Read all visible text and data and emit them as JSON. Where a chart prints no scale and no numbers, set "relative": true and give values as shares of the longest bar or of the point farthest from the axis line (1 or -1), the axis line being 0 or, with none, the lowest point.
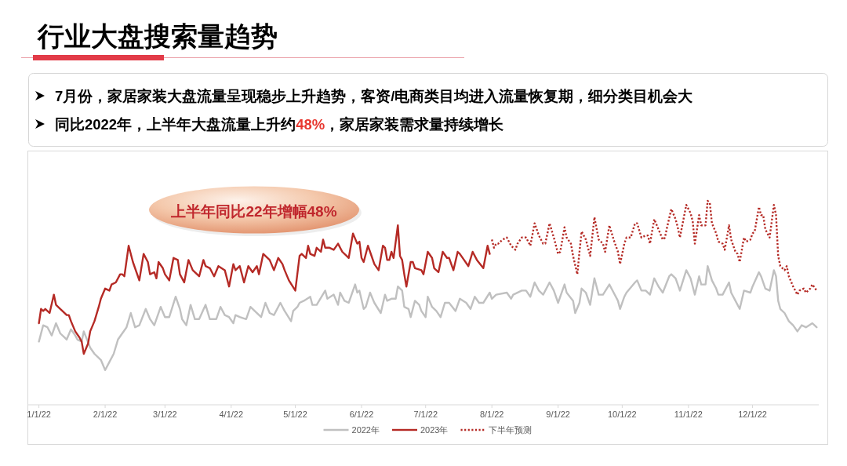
{
  "chart_data": {
    "type": "line",
    "title": "行业大盘搜索量趋势",
    "annotations": [
      "7月份，家居家装大盘流量呈现稳步上升趋势，客资/电商类目均进入流量恢复期，细分类目机会大",
      "同比2022年，上半年大盘流量上升约",
      "48%",
      "，家居家装需求量持续增长",
      "上半年同比22年增幅48%"
    ],
    "relative": true,
    "tick_labels": "x",
    "legend": "bottom",
    "xlim": [
      "2021-12-27",
      "2023-01-01"
    ],
    "xticks": [
      {
        "value": "2022-01-01",
        "label": "1/1/22"
      },
      {
        "value": "2022-02-01",
        "label": "2/1/22"
      },
      {
        "value": "2022-03-01",
        "label": "3/1/22"
      },
      {
        "value": "2022-04-01",
        "label": "4/1/22"
      },
      {
        "value": "2022-05-01",
        "label": "5/1/22"
      },
      {
        "value": "2022-06-01",
        "label": "6/1/22"
      },
      {
        "value": "2022-07-01",
        "label": "7/1/22"
      },
      {
        "value": "2022-08-01",
        "label": "8/1/22"
      },
      {
        "value": "2022-09-01",
        "label": "9/1/22"
      },
      {
        "value": "2022-10-01",
        "label": "10/1/22"
      },
      {
        "value": "2022-11-01",
        "label": "11/1/22"
      },
      {
        "value": "2022-12-01",
        "label": "12/1/22"
      }
    ],
    "series": [
      {
        "name": "2022年",
        "color": "#c0c0c0",
        "x": [
          "2022-01-01",
          "2022-01-03",
          "2022-01-05",
          "2022-01-07",
          "2022-01-09",
          "2022-01-11",
          "2022-01-13",
          "2022-01-14",
          "2022-01-16",
          "2022-01-18",
          "2022-01-19",
          "2022-01-21",
          "2022-01-22",
          "2022-01-25",
          "2022-01-27",
          "2022-01-30",
          "2022-02-01",
          "2022-02-03",
          "2022-02-05",
          "2022-02-07",
          "2022-02-09",
          "2022-02-11",
          "2022-02-13",
          "2022-02-15",
          "2022-02-17",
          "2022-02-20",
          "2022-02-22",
          "2022-02-24",
          "2022-02-27",
          "2022-03-01",
          "2022-03-03",
          "2022-03-06",
          "2022-03-08",
          "2022-03-09",
          "2022-03-11",
          "2022-03-13",
          "2022-03-15",
          "2022-03-17",
          "2022-03-20",
          "2022-03-22",
          "2022-03-25",
          "2022-03-27",
          "2022-03-29",
          "2022-03-31",
          "2022-04-02",
          "2022-04-03",
          "2022-04-05",
          "2022-04-08",
          "2022-04-10",
          "2022-04-12",
          "2022-04-15",
          "2022-04-17",
          "2022-04-19",
          "2022-04-21",
          "2022-04-24",
          "2022-04-26",
          "2022-04-29",
          "2022-04-30",
          "2022-05-02",
          "2022-05-03",
          "2022-05-05",
          "2022-05-08",
          "2022-05-09",
          "2022-05-11",
          "2022-05-15",
          "2022-05-16",
          "2022-05-19",
          "2022-05-21",
          "2022-05-22",
          "2022-05-24",
          "2022-05-26",
          "2022-05-29",
          "2022-05-30",
          "2022-05-31",
          "2022-06-02",
          "2022-06-03",
          "2022-06-05",
          "2022-06-07",
          "2022-06-10",
          "2022-06-12",
          "2022-06-13",
          "2022-06-15",
          "2022-06-17",
          "2022-06-18",
          "2022-06-20",
          "2022-06-21",
          "2022-06-23",
          "2022-06-24",
          "2022-06-26",
          "2022-06-28",
          "2022-06-29",
          "2022-07-01",
          "2022-07-02",
          "2022-07-04",
          "2022-07-06",
          "2022-07-08",
          "2022-07-10",
          "2022-07-12",
          "2022-07-15",
          "2022-07-17",
          "2022-07-20",
          "2022-07-22",
          "2022-07-24",
          "2022-07-26",
          "2022-07-28",
          "2022-07-31",
          "2022-08-01",
          "2022-08-03",
          "2022-08-08",
          "2022-08-10",
          "2022-08-11",
          "2022-08-15",
          "2022-08-17",
          "2022-08-19",
          "2022-08-21",
          "2022-08-23",
          "2022-08-25",
          "2022-08-28",
          "2022-08-30",
          "2022-09-01",
          "2022-09-04",
          "2022-09-05",
          "2022-09-08",
          "2022-09-09",
          "2022-09-11",
          "2022-09-12",
          "2022-09-14",
          "2022-09-16",
          "2022-09-18",
          "2022-09-20",
          "2022-09-22",
          "2022-09-25",
          "2022-09-27",
          "2022-09-29",
          "2022-09-30",
          "2022-10-02",
          "2022-10-03",
          "2022-10-07",
          "2022-10-08",
          "2022-10-10",
          "2022-10-12",
          "2022-10-14",
          "2022-10-16",
          "2022-10-18",
          "2022-10-20",
          "2022-10-23",
          "2022-10-24",
          "2022-10-26",
          "2022-10-27",
          "2022-10-28",
          "2022-10-31",
          "2022-11-02",
          "2022-11-04",
          "2022-11-06",
          "2022-11-07",
          "2022-11-09",
          "2022-11-10",
          "2022-11-12",
          "2022-11-14",
          "2022-11-15",
          "2022-11-17",
          "2022-11-20",
          "2022-11-21",
          "2022-11-23",
          "2022-11-25",
          "2022-11-27",
          "2022-11-30",
          "2022-12-01",
          "2022-12-04",
          "2022-12-05",
          "2022-12-07",
          "2022-12-09",
          "2022-12-11",
          "2022-12-12",
          "2022-12-13",
          "2022-12-14",
          "2022-12-16",
          "2022-12-18",
          "2022-12-20",
          "2022-12-22",
          "2022-12-24",
          "2022-12-26",
          "2022-12-29",
          "2022-12-31"
        ],
        "values": [
          0.31,
          0.39,
          0.38,
          0.34,
          0.4,
          0.35,
          0.33,
          0.32,
          0.37,
          0.34,
          0.32,
          0.31,
          0.36,
          0.28,
          0.25,
          0.22,
          0.17,
          0.21,
          0.25,
          0.32,
          0.35,
          0.38,
          0.45,
          0.38,
          0.39,
          0.47,
          0.42,
          0.39,
          0.48,
          0.43,
          0.43,
          0.53,
          0.47,
          0.42,
          0.39,
          0.49,
          0.42,
          0.42,
          0.49,
          0.42,
          0.42,
          0.48,
          0.44,
          0.43,
          0.4,
          0.44,
          0.43,
          0.42,
          0.48,
          0.46,
          0.43,
          0.5,
          0.45,
          0.44,
          0.5,
          0.46,
          0.41,
          0.46,
          0.48,
          0.5,
          0.51,
          0.53,
          0.49,
          0.49,
          0.56,
          0.52,
          0.54,
          0.49,
          0.55,
          0.51,
          0.5,
          0.59,
          0.55,
          0.56,
          0.47,
          0.48,
          0.55,
          0.5,
          0.45,
          0.54,
          0.51,
          0.52,
          0.52,
          0.58,
          0.56,
          0.48,
          0.47,
          0.43,
          0.51,
          0.49,
          0.46,
          0.43,
          0.53,
          0.48,
          0.46,
          0.43,
          0.5,
          0.5,
          0.46,
          0.52,
          0.5,
          0.47,
          0.53,
          0.5,
          0.5,
          0.55,
          0.52,
          0.54,
          0.55,
          0.52,
          0.54,
          0.56,
          0.56,
          0.53,
          0.6,
          0.56,
          0.54,
          0.6,
          0.56,
          0.5,
          0.59,
          0.55,
          0.51,
          0.45,
          0.5,
          0.57,
          0.55,
          0.49,
          0.62,
          0.54,
          0.54,
          0.59,
          0.55,
          0.51,
          0.47,
          0.53,
          0.55,
          0.6,
          0.61,
          0.56,
          0.56,
          0.54,
          0.62,
          0.58,
          0.55,
          0.63,
          0.64,
          0.62,
          0.59,
          0.56,
          0.66,
          0.62,
          0.54,
          0.63,
          0.59,
          0.59,
          0.68,
          0.61,
          0.57,
          0.54,
          0.54,
          0.6,
          0.55,
          0.51,
          0.47,
          0.56,
          0.55,
          0.58,
          0.65,
          0.63,
          0.57,
          0.56,
          0.66,
          0.63,
          0.51,
          0.47,
          0.45,
          0.41,
          0.39,
          0.36,
          0.39,
          0.38,
          0.4,
          0.38
        ]
      },
      {
        "name": "2023年",
        "color": "#b52a25",
        "x": [
          "2022-01-01",
          "2022-01-02",
          "2022-01-03",
          "2022-01-04",
          "2022-01-06",
          "2022-01-08",
          "2022-01-09",
          "2022-01-11",
          "2022-01-12",
          "2022-01-14",
          "2022-01-15",
          "2022-01-16",
          "2022-01-18",
          "2022-01-20",
          "2022-01-21",
          "2022-01-22",
          "2022-01-24",
          "2022-01-25",
          "2022-01-27",
          "2022-01-29",
          "2022-01-30",
          "2022-02-01",
          "2022-02-03",
          "2022-02-04",
          "2022-02-06",
          "2022-02-08",
          "2022-02-09",
          "2022-02-10",
          "2022-02-12",
          "2022-02-14",
          "2022-02-17",
          "2022-02-19",
          "2022-02-21",
          "2022-02-22",
          "2022-02-24",
          "2022-02-25",
          "2022-02-26",
          "2022-02-28",
          "2022-03-01",
          "2022-03-03",
          "2022-03-05",
          "2022-03-07",
          "2022-03-08",
          "2022-03-10",
          "2022-03-12",
          "2022-03-14",
          "2022-03-17",
          "2022-03-19",
          "2022-03-20",
          "2022-03-22",
          "2022-03-24",
          "2022-03-26",
          "2022-03-29",
          "2022-03-31",
          "2022-04-02",
          "2022-04-03",
          "2022-04-05",
          "2022-04-07",
          "2022-04-09",
          "2022-04-11",
          "2022-04-13",
          "2022-04-14",
          "2022-04-16",
          "2022-04-19",
          "2022-04-21",
          "2022-04-23",
          "2022-04-25",
          "2022-04-26",
          "2022-04-28",
          "2022-05-01",
          "2022-05-03",
          "2022-05-04",
          "2022-05-06",
          "2022-05-07",
          "2022-05-08",
          "2022-05-10",
          "2022-05-11",
          "2022-05-13",
          "2022-05-14",
          "2022-05-15",
          "2022-05-17",
          "2022-05-19",
          "2022-05-21",
          "2022-05-23",
          "2022-05-25",
          "2022-05-26",
          "2022-05-28",
          "2022-05-30",
          "2022-05-31",
          "2022-06-01",
          "2022-06-02",
          "2022-06-04",
          "2022-06-05",
          "2022-06-07",
          "2022-06-09",
          "2022-06-11",
          "2022-06-12",
          "2022-06-13",
          "2022-06-14",
          "2022-06-15",
          "2022-06-16",
          "2022-06-18",
          "2022-06-19",
          "2022-06-20",
          "2022-06-21",
          "2022-06-22",
          "2022-06-24",
          "2022-06-25",
          "2022-06-26",
          "2022-06-29",
          "2022-06-30",
          "2022-07-02",
          "2022-07-04",
          "2022-07-05",
          "2022-07-07",
          "2022-07-09",
          "2022-07-11",
          "2022-07-12",
          "2022-07-14",
          "2022-07-16",
          "2022-07-17",
          "2022-07-19",
          "2022-07-21",
          "2022-07-23",
          "2022-07-25",
          "2022-07-28",
          "2022-07-30",
          "2022-07-31"
        ],
        "values": [
          0.4,
          0.47,
          0.46,
          0.47,
          0.45,
          0.54,
          0.49,
          0.47,
          0.46,
          0.44,
          0.44,
          0.41,
          0.36,
          0.33,
          0.31,
          0.25,
          0.3,
          0.36,
          0.41,
          0.48,
          0.52,
          0.57,
          0.56,
          0.59,
          0.6,
          0.64,
          0.64,
          0.63,
          0.78,
          0.7,
          0.61,
          0.74,
          0.7,
          0.64,
          0.65,
          0.62,
          0.7,
          0.67,
          0.64,
          0.61,
          0.72,
          0.71,
          0.64,
          0.6,
          0.71,
          0.66,
          0.63,
          0.71,
          0.68,
          0.67,
          0.63,
          0.68,
          0.66,
          0.58,
          0.69,
          0.66,
          0.68,
          0.6,
          0.68,
          0.65,
          0.68,
          0.64,
          0.74,
          0.71,
          0.66,
          0.72,
          0.69,
          0.66,
          0.61,
          0.56,
          0.73,
          0.74,
          0.72,
          0.78,
          0.74,
          0.73,
          0.77,
          0.75,
          0.81,
          0.77,
          0.77,
          0.76,
          0.79,
          0.75,
          0.73,
          0.72,
          0.84,
          0.79,
          0.8,
          0.72,
          0.7,
          0.78,
          0.75,
          0.69,
          0.66,
          0.78,
          0.77,
          0.71,
          0.71,
          0.75,
          0.72,
          0.88,
          0.73,
          0.71,
          0.64,
          0.58,
          0.7,
          0.7,
          0.67,
          0.66,
          0.64,
          0.75,
          0.72,
          0.67,
          0.65,
          0.75,
          0.72,
          0.72,
          0.66,
          0.75,
          0.74,
          0.71,
          0.68,
          0.75,
          0.71,
          0.67,
          0.78,
          0.74
        ]
      },
      {
        "name": "下半年预测",
        "color": "#b52a25",
        "line_style": "dotted",
        "x": [
          "2022-08-01",
          "2022-08-02",
          "2022-08-03",
          "2022-08-04",
          "2022-08-06",
          "2022-08-08",
          "2022-08-10",
          "2022-08-12",
          "2022-08-13",
          "2022-08-15",
          "2022-08-17",
          "2022-08-19",
          "2022-08-21",
          "2022-08-23",
          "2022-08-25",
          "2022-08-26",
          "2022-08-28",
          "2022-08-30",
          "2022-09-01",
          "2022-09-02",
          "2022-09-04",
          "2022-09-05",
          "2022-09-07",
          "2022-09-08",
          "2022-09-10",
          "2022-09-11",
          "2022-09-12",
          "2022-09-14",
          "2022-09-16",
          "2022-09-18",
          "2022-09-20",
          "2022-09-22",
          "2022-09-23",
          "2022-09-25",
          "2022-09-27",
          "2022-09-29",
          "2022-09-30",
          "2022-10-02",
          "2022-10-03",
          "2022-10-05",
          "2022-10-07",
          "2022-10-08",
          "2022-10-10",
          "2022-10-12",
          "2022-10-13",
          "2022-10-14",
          "2022-10-16",
          "2022-10-18",
          "2022-10-20",
          "2022-10-21",
          "2022-10-22",
          "2022-10-24",
          "2022-10-26",
          "2022-10-27",
          "2022-10-28",
          "2022-10-31",
          "2022-11-02",
          "2022-11-03",
          "2022-11-04",
          "2022-11-06",
          "2022-11-07",
          "2022-11-09",
          "2022-11-10",
          "2022-11-11",
          "2022-11-12",
          "2022-11-14",
          "2022-11-15",
          "2022-11-17",
          "2022-11-18",
          "2022-11-20",
          "2022-11-21",
          "2022-11-23",
          "2022-11-24",
          "2022-11-25",
          "2022-11-27",
          "2022-11-28",
          "2022-11-30",
          "2022-12-01",
          "2022-12-02",
          "2022-12-04",
          "2022-12-05",
          "2022-12-06",
          "2022-12-07",
          "2022-12-09",
          "2022-12-11",
          "2022-12-12",
          "2022-12-13",
          "2022-12-14",
          "2022-12-16",
          "2022-12-17",
          "2022-12-18",
          "2022-12-20",
          "2022-12-22",
          "2022-12-23",
          "2022-12-25",
          "2022-12-26",
          "2022-12-28",
          "2022-12-29",
          "2022-12-31"
        ],
        "values": [
          0.81,
          0.77,
          0.79,
          0.79,
          0.81,
          0.82,
          0.78,
          0.76,
          0.79,
          0.82,
          0.82,
          0.78,
          0.89,
          0.83,
          0.79,
          0.79,
          0.89,
          0.82,
          0.74,
          0.75,
          0.87,
          0.82,
          0.79,
          0.73,
          0.64,
          0.75,
          0.85,
          0.81,
          0.73,
          0.92,
          0.81,
          0.79,
          0.75,
          0.88,
          0.81,
          0.75,
          0.69,
          0.79,
          0.82,
          0.82,
          0.89,
          0.89,
          0.82,
          0.83,
          0.83,
          0.79,
          0.91,
          0.86,
          0.81,
          0.82,
          0.87,
          0.96,
          0.91,
          0.87,
          0.82,
          0.98,
          0.94,
          0.9,
          0.79,
          0.93,
          0.88,
          0.88,
          1,
          0.99,
          0.89,
          0.84,
          0.8,
          0.79,
          0.76,
          0.88,
          0.81,
          0.75,
          0.74,
          0.7,
          0.82,
          0.8,
          0.81,
          0.84,
          0.85,
          0.97,
          0.93,
          0.93,
          0.86,
          0.82,
          0.98,
          0.93,
          0.73,
          0.68,
          0.66,
          0.68,
          0.63,
          0.58,
          0.54,
          0.56,
          0.57,
          0.55,
          0.57,
          0.59,
          0.56
        ]
      }
    ]
  }
}
